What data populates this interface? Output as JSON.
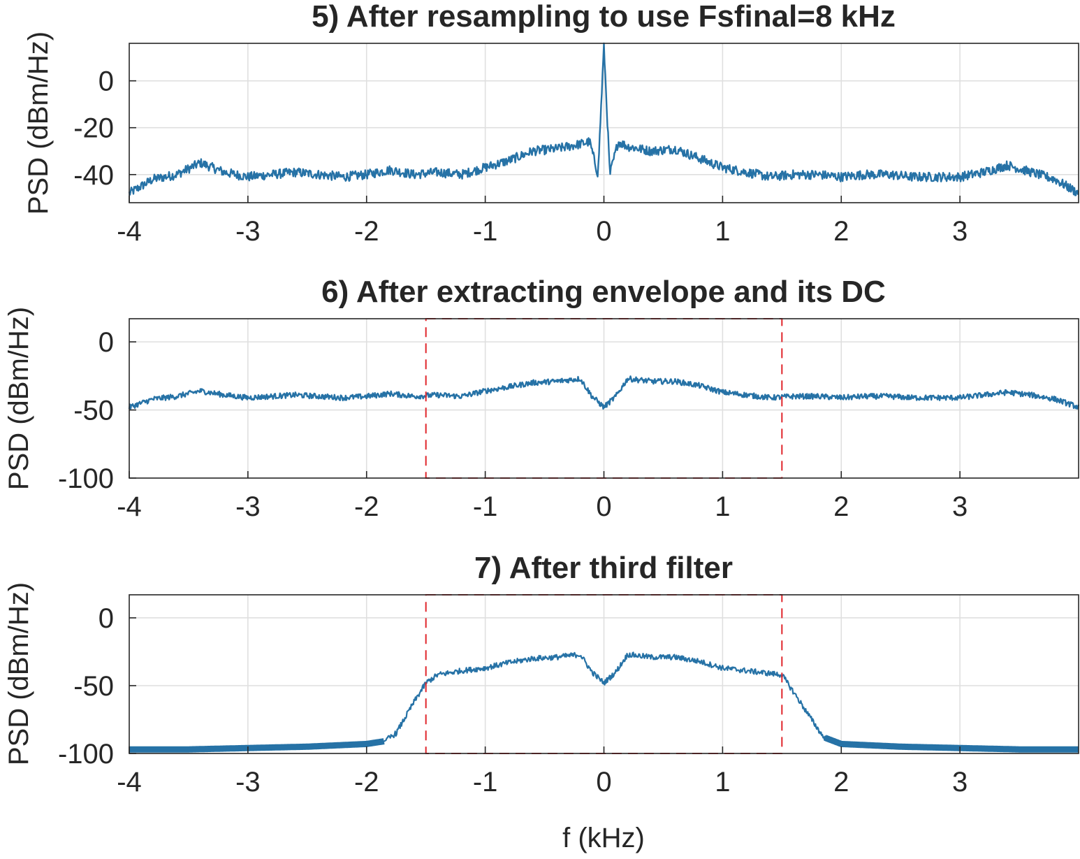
{
  "chart_data": [
    {
      "type": "line",
      "title": "5) After resampling to use Fsfinal=8 kHz",
      "xlabel": "",
      "ylabel": "PSD (dBm/Hz)",
      "xlim": [
        -4,
        4
      ],
      "ylim": [
        -52,
        16
      ],
      "xticks": [
        -4,
        -3,
        -2,
        -1,
        0,
        1,
        2,
        3
      ],
      "xtick_labels": [
        "-4",
        "-3",
        "-2",
        "-1",
        "0",
        "1",
        "2",
        "3"
      ],
      "yticks": [
        0,
        -20,
        -40
      ],
      "ytick_labels": [
        "0",
        "-20",
        "-40"
      ],
      "grid": true,
      "series": [
        {
          "name": "PSD",
          "color": "#2672a6",
          "x": [
            -4,
            -3.8,
            -3.6,
            -3.4,
            -3.2,
            -3.0,
            -2.8,
            -2.6,
            -2.4,
            -2.2,
            -2.0,
            -1.8,
            -1.6,
            -1.4,
            -1.2,
            -1.0,
            -0.8,
            -0.6,
            -0.4,
            -0.3,
            -0.2,
            -0.12,
            -0.05,
            0,
            0.05,
            0.12,
            0.2,
            0.3,
            0.4,
            0.6,
            0.8,
            1.0,
            1.2,
            1.4,
            1.6,
            1.8,
            2.0,
            2.2,
            2.4,
            2.6,
            2.8,
            3.0,
            3.2,
            3.4,
            3.6,
            3.8,
            4.0
          ],
          "y": [
            -48,
            -42,
            -40,
            -35,
            -39,
            -41,
            -40,
            -39,
            -40,
            -41,
            -40,
            -38,
            -40,
            -39,
            -40,
            -37,
            -34,
            -30,
            -29,
            -28,
            -27,
            -26,
            -40,
            15,
            -40,
            -26,
            -28,
            -29,
            -30,
            -29,
            -33,
            -37,
            -39,
            -41,
            -40,
            -40,
            -41,
            -40,
            -40,
            -41,
            -41,
            -41,
            -39,
            -36,
            -39,
            -42,
            -48
          ]
        }
      ],
      "noise_amplitude_db": 2
    },
    {
      "type": "line",
      "title": "6) After extracting envelope and its DC",
      "xlabel": "",
      "ylabel": "PSD (dBm/Hz)",
      "xlim": [
        -4,
        4
      ],
      "ylim": [
        -100,
        17
      ],
      "xticks": [
        -4,
        -3,
        -2,
        -1,
        0,
        1,
        2,
        3
      ],
      "xtick_labels": [
        "-4",
        "-3",
        "-2",
        "-1",
        "0",
        "1",
        "2",
        "3"
      ],
      "yticks": [
        0,
        -50,
        -100
      ],
      "ytick_labels": [
        "0",
        "-50",
        "-100"
      ],
      "grid": true,
      "series": [
        {
          "name": "PSD",
          "color": "#2672a6",
          "x": [
            -4,
            -3.8,
            -3.6,
            -3.4,
            -3.2,
            -3.0,
            -2.8,
            -2.6,
            -2.4,
            -2.2,
            -2.0,
            -1.8,
            -1.6,
            -1.4,
            -1.2,
            -1.0,
            -0.8,
            -0.6,
            -0.4,
            -0.2,
            -0.1,
            0,
            0.1,
            0.2,
            0.4,
            0.6,
            0.8,
            1.0,
            1.2,
            1.4,
            1.6,
            1.8,
            2.0,
            2.2,
            2.4,
            2.6,
            2.8,
            3.0,
            3.2,
            3.4,
            3.6,
            3.8,
            4.0
          ],
          "y": [
            -48,
            -42,
            -40,
            -36,
            -39,
            -41,
            -40,
            -39,
            -40,
            -41,
            -40,
            -38,
            -40,
            -39,
            -40,
            -36,
            -33,
            -30,
            -29,
            -27,
            -40,
            -48,
            -40,
            -27,
            -29,
            -29,
            -32,
            -37,
            -39,
            -41,
            -40,
            -40,
            -41,
            -40,
            -40,
            -41,
            -41,
            -41,
            -39,
            -37,
            -39,
            -42,
            -48
          ]
        }
      ],
      "passband": {
        "x": [
          -1.5,
          1.5
        ],
        "top": 17,
        "bottom": -100,
        "color": "#e0252b"
      },
      "noise_amplitude_db": 2
    },
    {
      "type": "line",
      "title": "7) After third filter",
      "xlabel": "f (kHz)",
      "ylabel": "PSD (dBm/Hz)",
      "xlim": [
        -4,
        4
      ],
      "ylim": [
        -100,
        17
      ],
      "xticks": [
        -4,
        -3,
        -2,
        -1,
        0,
        1,
        2,
        3
      ],
      "xtick_labels": [
        "-4",
        "-3",
        "-2",
        "-1",
        "0",
        "1",
        "2",
        "3"
      ],
      "yticks": [
        0,
        -50,
        -100
      ],
      "ytick_labels": [
        "0",
        "-50",
        "-100"
      ],
      "grid": true,
      "series": [
        {
          "name": "PSD",
          "color": "#2672a6",
          "x": [
            -4,
            -3.5,
            -3.0,
            -2.5,
            -2.0,
            -1.85,
            -1.75,
            -1.6,
            -1.5,
            -1.4,
            -1.2,
            -1.0,
            -0.8,
            -0.6,
            -0.4,
            -0.2,
            -0.1,
            0,
            0.1,
            0.2,
            0.4,
            0.6,
            0.8,
            1.0,
            1.2,
            1.4,
            1.5,
            1.6,
            1.75,
            1.85,
            2.0,
            2.5,
            3.0,
            3.5,
            4.0
          ],
          "y": [
            -97,
            -97,
            -96,
            -95,
            -93,
            -91,
            -85,
            -62,
            -48,
            -42,
            -39,
            -37,
            -33,
            -30,
            -29,
            -27,
            -40,
            -48,
            -40,
            -27,
            -29,
            -29,
            -32,
            -37,
            -39,
            -41,
            -42,
            -55,
            -75,
            -88,
            -93,
            -95,
            -96,
            -97,
            -97
          ]
        }
      ],
      "passband": {
        "x": [
          -1.5,
          1.5
        ],
        "top": 17,
        "bottom": -100,
        "color": "#e0252b"
      },
      "noise_amplitude_db": 2
    }
  ]
}
